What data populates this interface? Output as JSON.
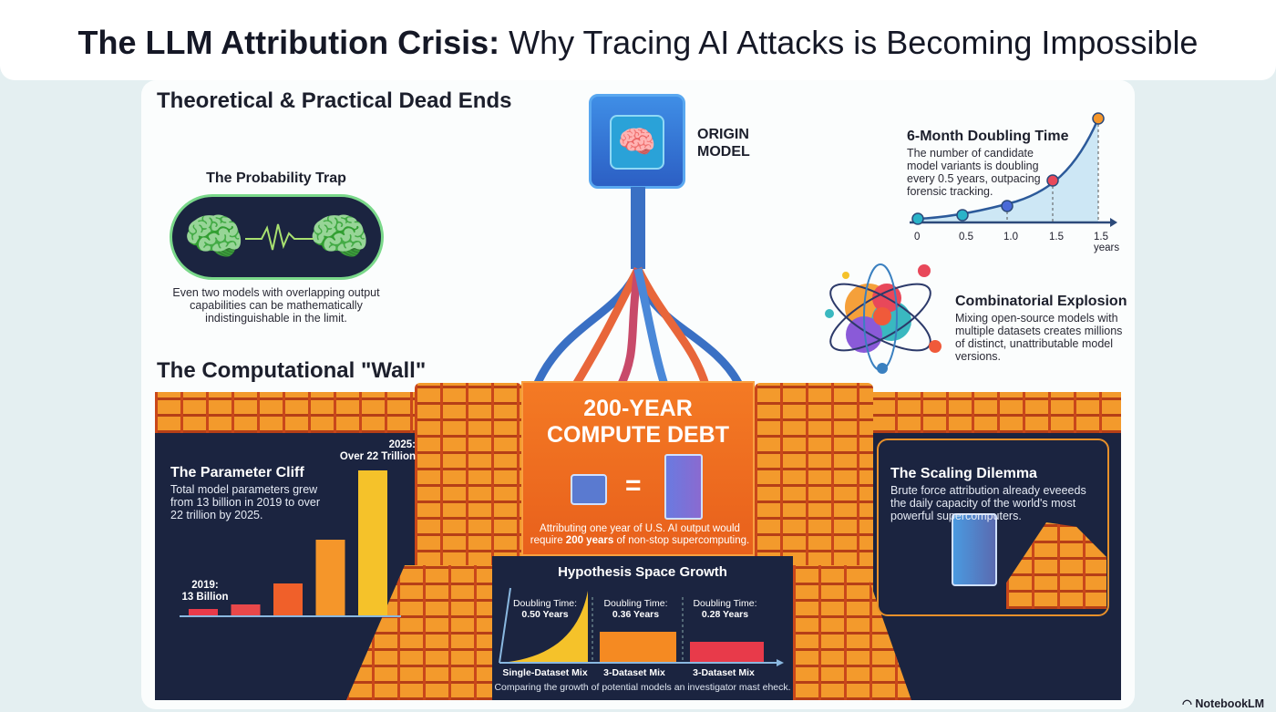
{
  "header": {
    "title_bold": "The LLM Attribution Crisis:",
    "title_rest": " Why Tracing AI Attacks is Becoming Impossible"
  },
  "sections": {
    "dead_ends": "Theoretical & Practical Dead Ends",
    "wall": "The Computational \"Wall\""
  },
  "origin": {
    "label_line1": "ORIGIN",
    "label_line2": "MODEL",
    "icon": "brain-icon"
  },
  "probability_trap": {
    "title": "The Probability Trap",
    "text": "Even two models with overlapping output capabilities can be mathematically indistinguishable in the limit."
  },
  "doubling": {
    "title": "6-Month Doubling Time",
    "text": "The number of candidate model variants is doubling every 0.5 years, outpacing forensic tracking.",
    "ticks": [
      "0",
      "0.5",
      "1.0",
      "1.5",
      "1.5 years"
    ]
  },
  "combinatorial": {
    "title": "Combinatorial Explosion",
    "text": "Mixing open-source models with multiple datasets creates millions of distinct, unattributable model versions."
  },
  "compute_debt": {
    "title_line1": "200-YEAR",
    "title_line2": "COMPUTE DEBT",
    "equals": "=",
    "text_pre": "Attributing one year of U.S. AI output would require ",
    "text_bold": "200 years",
    "text_post": " of non-stop supercomputing."
  },
  "parameter_cliff": {
    "title": "The Parameter Cliff",
    "text": "Total model parameters grew from 13 billion in 2019 to over 22 trillion by 2025.",
    "label_start_1": "2019:",
    "label_start_2": "13 Billion",
    "label_end_1": "2025:",
    "label_end_2": "Over 22 Trillion"
  },
  "hypothesis": {
    "title": "Hypothesis Space Growth",
    "caption": "Comparing the growth of potential models an investigator mast eheck.",
    "groups": [
      {
        "label": "Single-Dataset Mix",
        "dt_label": "Doubling Time:",
        "dt_value": "0.50 Years",
        "color": "#f5c22a"
      },
      {
        "label": "3-Dataset Mix",
        "dt_label": "Doubling Time:",
        "dt_value": "0.36 Years",
        "color": "#f58a22"
      },
      {
        "label": "3-Dataset Mix",
        "dt_label": "Doubling Time:",
        "dt_value": "0.28 Years",
        "color": "#e83a4a"
      }
    ]
  },
  "scaling": {
    "title": "The Scaling Dilemma",
    "text": "Brute force attribution already eveeeds the daily capacity of the world's most powerful supercomputers."
  },
  "watermark": "NotebookLM",
  "chart_data": [
    {
      "type": "line",
      "x_tick_labels": [
        "0",
        "0.5",
        "1.0",
        "1.5",
        "1.5 years"
      ],
      "point_colors": [
        "#2ab3c8",
        "#2ab3c8",
        "#4a6ad8",
        "#e8485a",
        "#f5962a"
      ]
    },
    {
      "type": "bar",
      "bar_colors": [
        "#e83a4a",
        "#e8484a",
        "#f0602a",
        "#f5962a",
        "#f5c22a"
      ],
      "annotations": [
        "2019: 13 Billion",
        "2025: Over 22 Trillion"
      ]
    }
  ]
}
